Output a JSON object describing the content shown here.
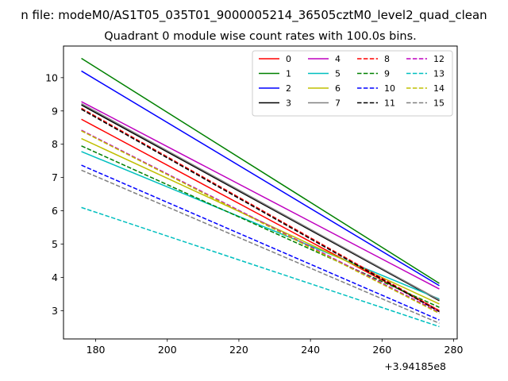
{
  "chart_data": {
    "type": "line",
    "suptitle": "n file: modeM0/AS1T05_035T01_9000005214_36505cztM0_level2_quad_clean",
    "title": "Quadrant 0 module wise count rates with 100.0s bins.",
    "x_offset_label": "+3.94185e8",
    "x": [
      176,
      276
    ],
    "xlim": [
      171,
      281
    ],
    "ylim": [
      2.15,
      10.95
    ],
    "x_ticks": [
      180,
      200,
      220,
      240,
      260,
      280
    ],
    "y_ticks": [
      3,
      4,
      5,
      6,
      7,
      8,
      9,
      10
    ],
    "legend": {
      "placement": "top-right",
      "columns": 4
    },
    "series": [
      {
        "name": "0",
        "values": [
          8.75,
          3.0
        ],
        "color": "#ff0000",
        "style": "solid"
      },
      {
        "name": "1",
        "values": [
          10.58,
          3.82
        ],
        "color": "#008000",
        "style": "solid"
      },
      {
        "name": "2",
        "values": [
          10.2,
          3.75
        ],
        "color": "#0000ff",
        "style": "solid"
      },
      {
        "name": "3",
        "values": [
          9.18,
          3.3
        ],
        "color": "#000000",
        "style": "solid"
      },
      {
        "name": "4",
        "values": [
          9.28,
          3.65
        ],
        "color": "#bf00bf",
        "style": "solid"
      },
      {
        "name": "5",
        "values": [
          7.78,
          3.35
        ],
        "color": "#00bfbf",
        "style": "solid"
      },
      {
        "name": "6",
        "values": [
          8.17,
          3.2
        ],
        "color": "#bfbf00",
        "style": "solid"
      },
      {
        "name": "7",
        "values": [
          9.22,
          3.32
        ],
        "color": "#808080",
        "style": "solid"
      },
      {
        "name": "8",
        "values": [
          9.08,
          3.0
        ],
        "color": "#ff0000",
        "style": "dashed"
      },
      {
        "name": "9",
        "values": [
          7.95,
          3.1
        ],
        "color": "#008000",
        "style": "dashed"
      },
      {
        "name": "10",
        "values": [
          7.37,
          2.72
        ],
        "color": "#0000ff",
        "style": "dashed"
      },
      {
        "name": "11",
        "values": [
          9.05,
          2.97
        ],
        "color": "#000000",
        "style": "dashed"
      },
      {
        "name": "12",
        "values": [
          8.42,
          2.95
        ],
        "color": "#bf00bf",
        "style": "dashed"
      },
      {
        "name": "13",
        "values": [
          6.1,
          2.52
        ],
        "color": "#00bfbf",
        "style": "dashed"
      },
      {
        "name": "14",
        "values": [
          8.4,
          2.92
        ],
        "color": "#bfbf00",
        "style": "dashed"
      },
      {
        "name": "15",
        "values": [
          7.22,
          2.62
        ],
        "color": "#808080",
        "style": "dashed"
      }
    ]
  }
}
